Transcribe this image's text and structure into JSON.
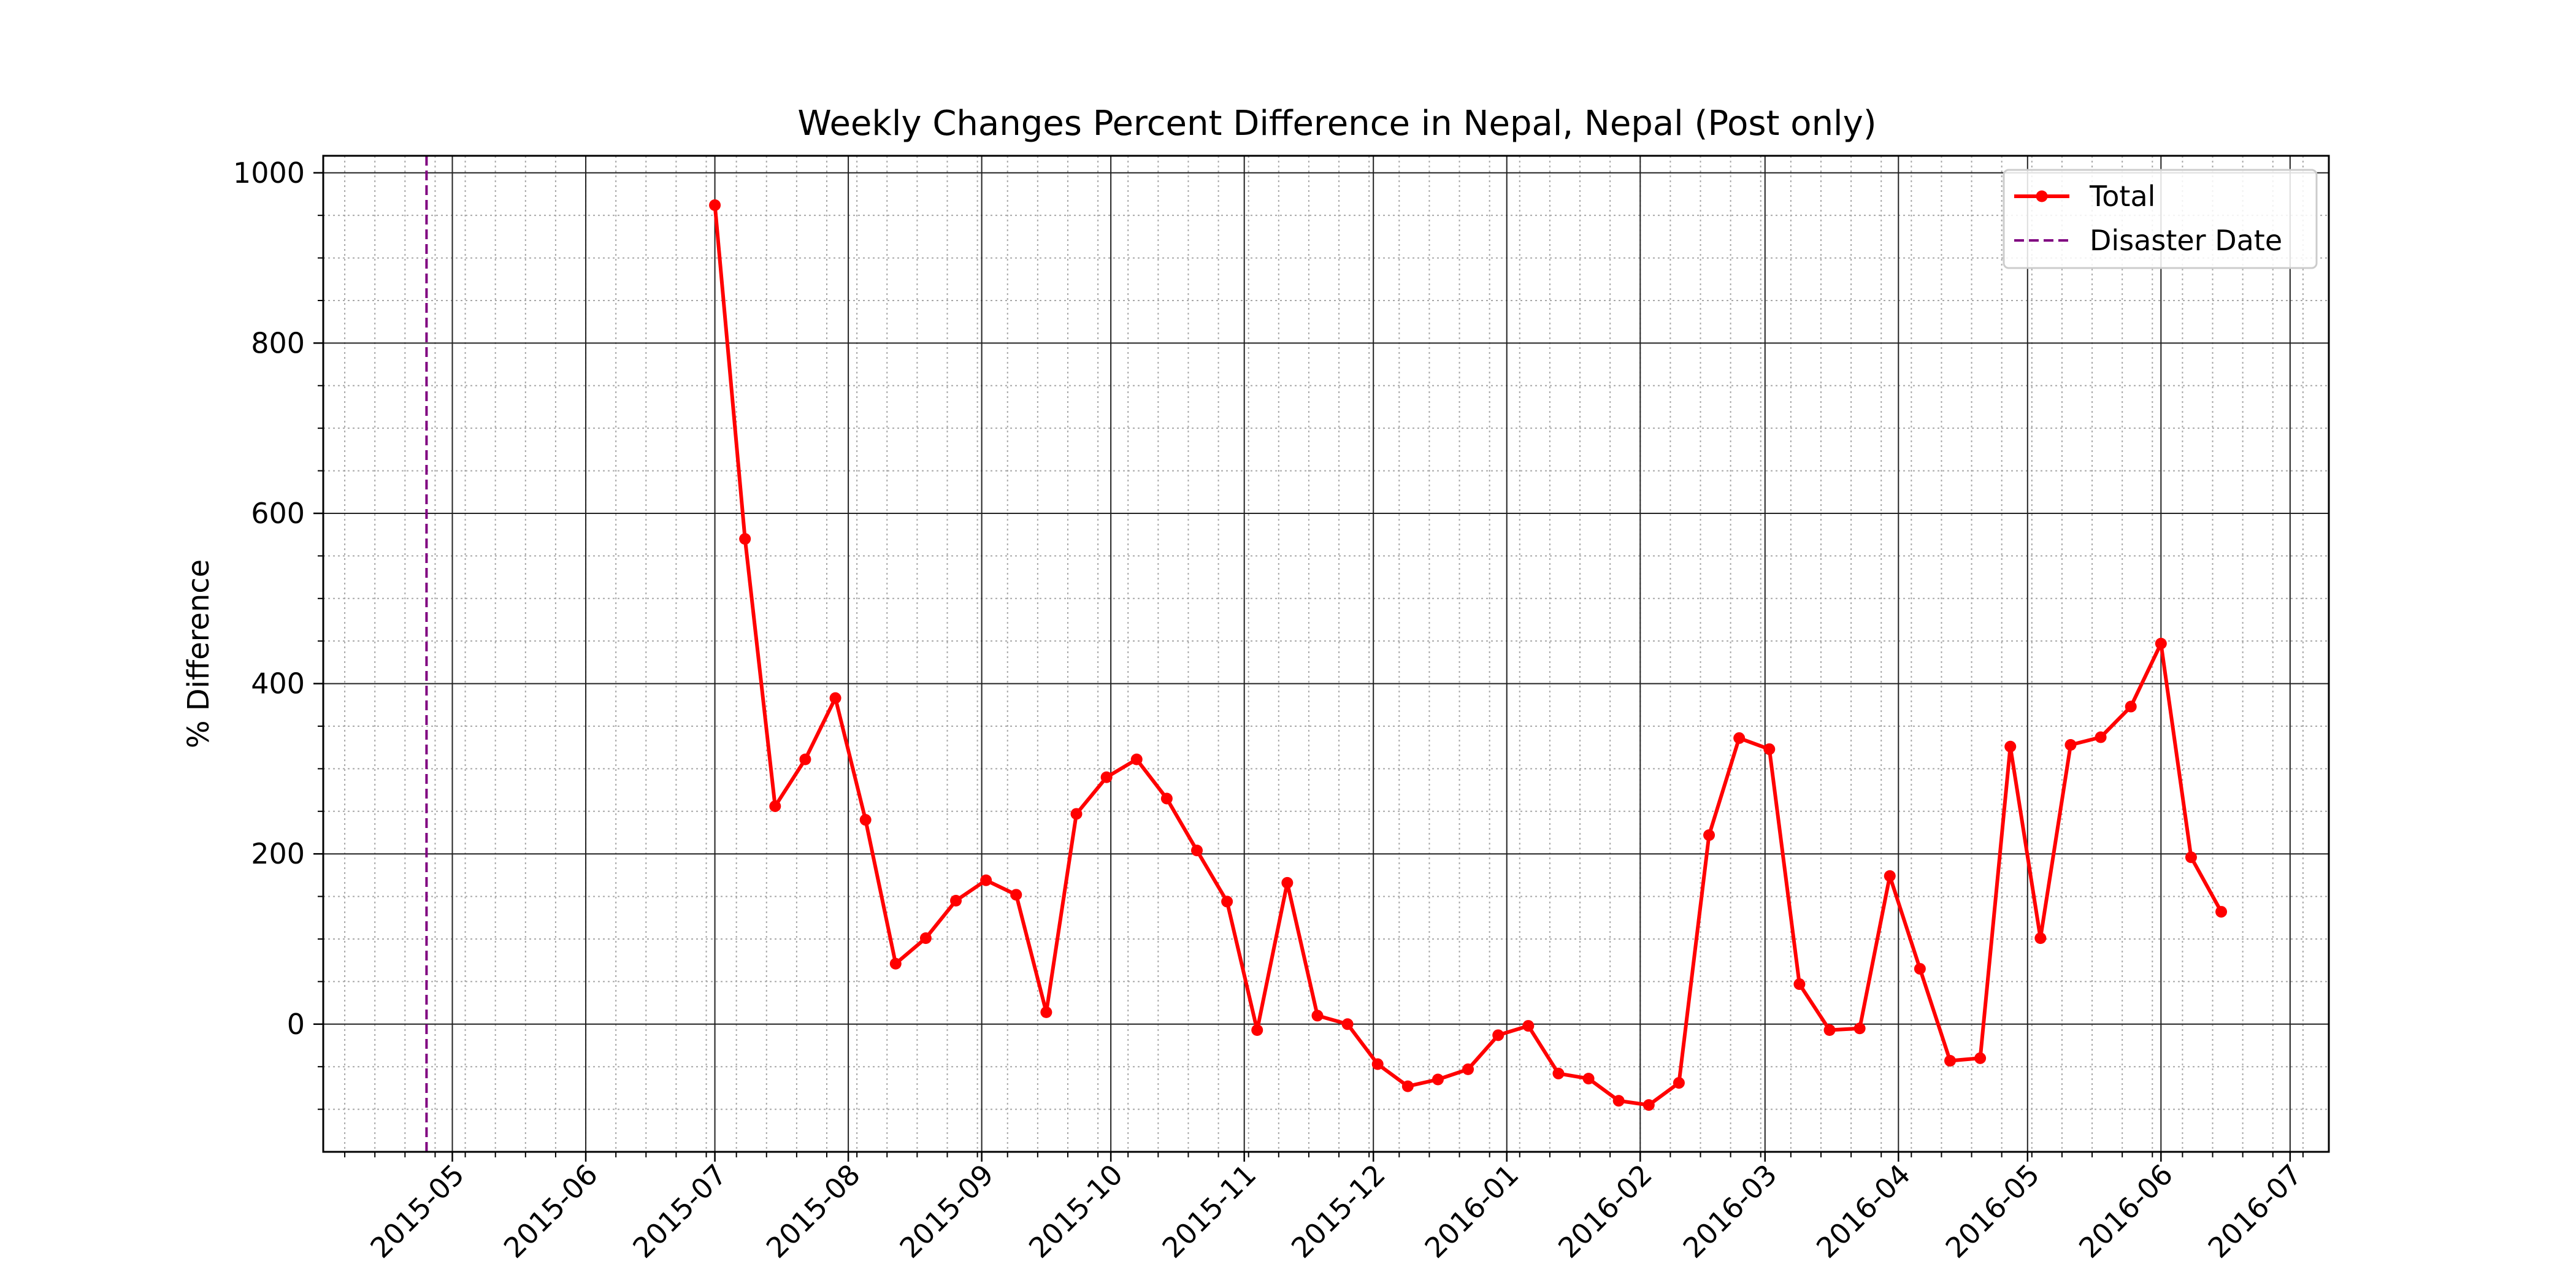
{
  "chart_data": {
    "type": "line",
    "title": "Weekly Changes Percent Difference in Nepal, Nepal (Post only)",
    "xlabel": "",
    "ylabel": "% Difference",
    "x_is_date": true,
    "xlim": [
      "2015-04-01",
      "2016-07-10"
    ],
    "ylim": [
      -150,
      1020
    ],
    "y_ticks": [
      0,
      200,
      400,
      600,
      800,
      1000
    ],
    "x_tick_labels": [
      "2015-05",
      "2015-06",
      "2015-07",
      "2015-08",
      "2015-09",
      "2015-10",
      "2015-11",
      "2015-12",
      "2016-01",
      "2016-02",
      "2016-03",
      "2016-04",
      "2016-05",
      "2016-06",
      "2016-07"
    ],
    "grid": true,
    "legend_position": "upper right",
    "series": [
      {
        "name": "Total",
        "color": "#ff0000",
        "marker": "circle",
        "x": [
          "2015-07-01",
          "2015-07-08",
          "2015-07-15",
          "2015-07-22",
          "2015-07-29",
          "2015-08-05",
          "2015-08-12",
          "2015-08-19",
          "2015-08-26",
          "2015-09-02",
          "2015-09-09",
          "2015-09-16",
          "2015-09-23",
          "2015-09-30",
          "2015-10-07",
          "2015-10-14",
          "2015-10-21",
          "2015-10-28",
          "2015-11-04",
          "2015-11-11",
          "2015-11-18",
          "2015-11-25",
          "2015-12-02",
          "2015-12-09",
          "2015-12-16",
          "2015-12-23",
          "2015-12-30",
          "2016-01-06",
          "2016-01-13",
          "2016-01-20",
          "2016-01-27",
          "2016-02-03",
          "2016-02-10",
          "2016-02-17",
          "2016-02-24",
          "2016-03-02",
          "2016-03-09",
          "2016-03-16",
          "2016-03-23",
          "2016-03-30",
          "2016-04-06",
          "2016-04-13",
          "2016-04-20",
          "2016-04-27",
          "2016-05-04",
          "2016-05-11",
          "2016-05-18",
          "2016-05-25",
          "2016-06-01",
          "2016-06-08",
          "2016-06-15"
        ],
        "y": [
          962,
          570,
          256,
          311,
          383,
          240,
          71,
          101,
          145,
          169,
          152,
          14,
          247,
          290,
          311,
          265,
          204,
          144,
          -7,
          166,
          10,
          0,
          -47,
          -73,
          -65,
          -53,
          -13,
          -2,
          -58,
          -64,
          -90,
          -95,
          -69,
          222,
          336,
          323,
          47,
          -7,
          -5,
          174,
          65,
          -43,
          -40,
          326,
          101,
          328,
          337,
          373,
          447,
          196,
          132
        ]
      },
      {
        "name": "Disaster Date",
        "color": "#800080",
        "linestyle": "dashed",
        "x_value": "2015-04-25"
      }
    ]
  }
}
